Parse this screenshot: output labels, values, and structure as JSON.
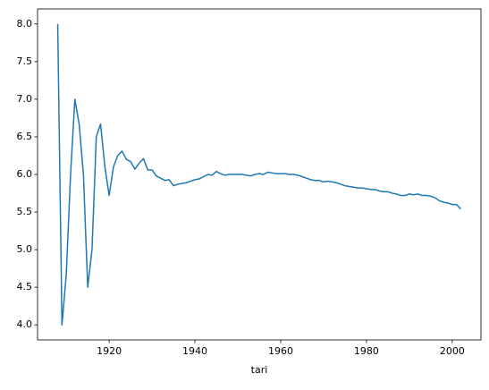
{
  "chart_data": {
    "type": "line",
    "xlabel": "tari",
    "color": "#1f77b4",
    "x": [
      1908,
      1909,
      1910,
      1911,
      1912,
      1913,
      1914,
      1915,
      1916,
      1917,
      1918,
      1919,
      1920,
      1921,
      1922,
      1923,
      1924,
      1925,
      1926,
      1927,
      1928,
      1929,
      1930,
      1931,
      1932,
      1933,
      1934,
      1935,
      1936,
      1937,
      1938,
      1939,
      1940,
      1941,
      1942,
      1943,
      1944,
      1945,
      1946,
      1947,
      1948,
      1949,
      1950,
      1951,
      1952,
      1953,
      1954,
      1955,
      1956,
      1957,
      1958,
      1959,
      1960,
      1961,
      1962,
      1963,
      1964,
      1965,
      1966,
      1967,
      1968,
      1969,
      1970,
      1971,
      1972,
      1973,
      1974,
      1975,
      1976,
      1977,
      1978,
      1979,
      1980,
      1981,
      1982,
      1983,
      1984,
      1985,
      1986,
      1987,
      1988,
      1989,
      1990,
      1991,
      1992,
      1993,
      1994,
      1995,
      1996,
      1997,
      1998,
      1999,
      2000,
      2001,
      2002
    ],
    "values": [
      8.0,
      4.0,
      4.67,
      6.0,
      7.0,
      6.67,
      6.0,
      4.5,
      5.0,
      6.5,
      6.67,
      6.1,
      5.72,
      6.1,
      6.25,
      6.31,
      6.2,
      6.17,
      6.07,
      6.15,
      6.21,
      6.06,
      6.06,
      5.98,
      5.95,
      5.92,
      5.93,
      5.85,
      5.87,
      5.88,
      5.89,
      5.91,
      5.93,
      5.94,
      5.97,
      6.0,
      5.99,
      6.04,
      6.01,
      5.99,
      6.0,
      6.0,
      6.0,
      6.0,
      5.99,
      5.98,
      6.0,
      6.01,
      6.0,
      6.03,
      6.02,
      6.01,
      6.01,
      6.01,
      6.0,
      6.0,
      5.99,
      5.97,
      5.95,
      5.93,
      5.92,
      5.92,
      5.9,
      5.91,
      5.9,
      5.89,
      5.87,
      5.85,
      5.84,
      5.83,
      5.82,
      5.82,
      5.81,
      5.8,
      5.8,
      5.78,
      5.77,
      5.77,
      5.75,
      5.74,
      5.72,
      5.72,
      5.74,
      5.73,
      5.74,
      5.72,
      5.72,
      5.71,
      5.69,
      5.65,
      5.63,
      5.62,
      5.6,
      5.6,
      5.54
    ],
    "xlim": [
      1903.3,
      2006.7
    ],
    "xticks": [
      1920,
      1940,
      1960,
      1980,
      2000
    ],
    "ylim": [
      3.8,
      8.2
    ],
    "yticks": [
      {
        "value": 4,
        "label": "4.0"
      },
      {
        "value": 4.5,
        "label": "4.5"
      },
      {
        "value": 5,
        "label": "5.0"
      },
      {
        "value": 5.5,
        "label": "5.5"
      },
      {
        "value": 6,
        "label": "6.0"
      },
      {
        "value": 6.5,
        "label": "6.5"
      },
      {
        "value": 7,
        "label": "7.0"
      },
      {
        "value": 7.5,
        "label": "7.5"
      },
      {
        "value": 8,
        "label": "8.0"
      }
    ]
  }
}
